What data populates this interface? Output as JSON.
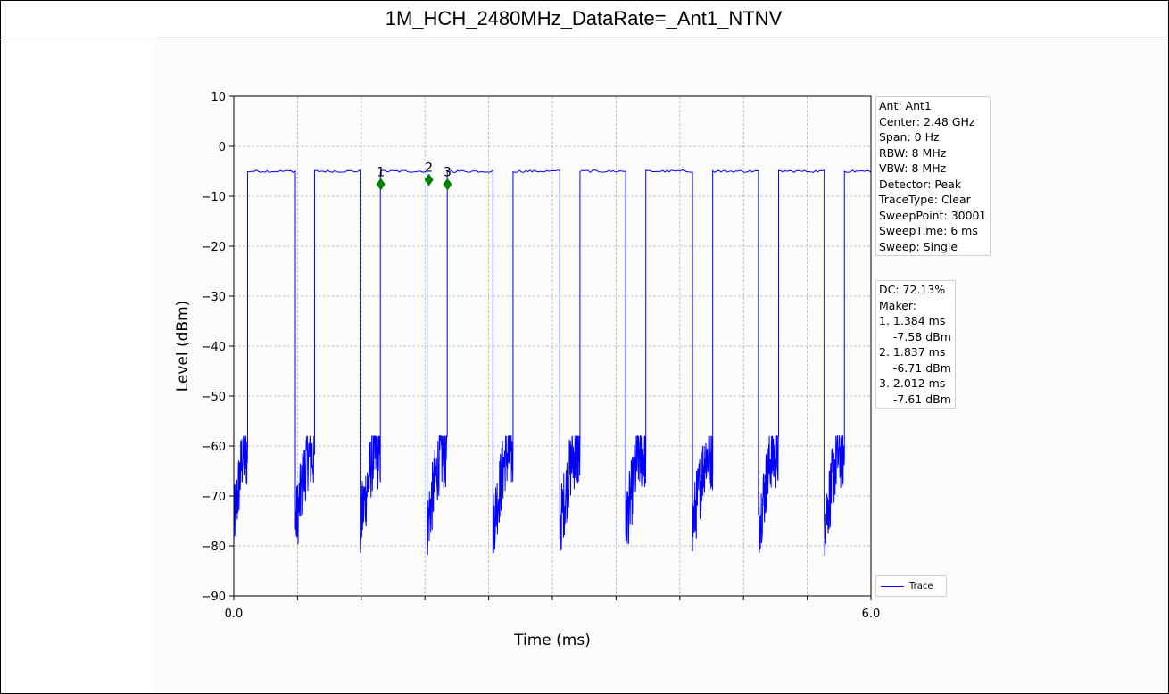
{
  "title": "1M_HCH_2480MHz_DataRate=_Ant1_NTNV",
  "settings_box": [
    "Ant: Ant1",
    "Center: 2.48 GHz",
    "Span: 0 Hz",
    "RBW: 8 MHz",
    "VBW: 8 MHz",
    "Detector: Peak",
    "TraceType: Clear",
    "SweepPoint: 30001",
    "SweepTime: 6 ms",
    "Sweep: Single"
  ],
  "marker_box": [
    "DC: 72.13%",
    "Maker:",
    "1. 1.384 ms",
    "    -7.58 dBm",
    "2. 1.837 ms",
    "    -6.71 dBm",
    "3. 2.012 ms",
    "    -7.61 dBm"
  ],
  "chart_data": {
    "type": "line",
    "title": "",
    "xlabel": "Time (ms)",
    "ylabel": "Level (dBm)",
    "xlim": [
      0,
      6
    ],
    "ylim": [
      -90,
      10
    ],
    "x_tick_labels": [
      "0.0",
      "6.0"
    ],
    "x_minor_ticks": 10,
    "y_ticks": [
      10,
      0,
      -10,
      -20,
      -30,
      -40,
      -50,
      -60,
      -70,
      -80,
      -90
    ],
    "grid": true,
    "legend_position": "lower-right",
    "series": [
      {
        "name": "Trace",
        "color": "#0000ff",
        "on_level_dbm": -5,
        "off_level_range_dbm": [
          -82,
          -58
        ],
        "on_segments_ms": [
          [
            0.13,
            0.58
          ],
          [
            0.76,
            1.19
          ],
          [
            1.38,
            1.82
          ],
          [
            2.01,
            2.44
          ],
          [
            2.63,
            3.07
          ],
          [
            3.26,
            3.69
          ],
          [
            3.88,
            4.32
          ],
          [
            4.51,
            4.94
          ],
          [
            5.13,
            5.56
          ],
          [
            5.75,
            6.0
          ]
        ]
      }
    ],
    "markers": [
      {
        "label": "1",
        "x": 1.384,
        "y": -7.58
      },
      {
        "label": "2",
        "x": 1.837,
        "y": -6.71
      },
      {
        "label": "3",
        "x": 2.012,
        "y": -7.61
      }
    ],
    "marker_color": "#008000"
  }
}
